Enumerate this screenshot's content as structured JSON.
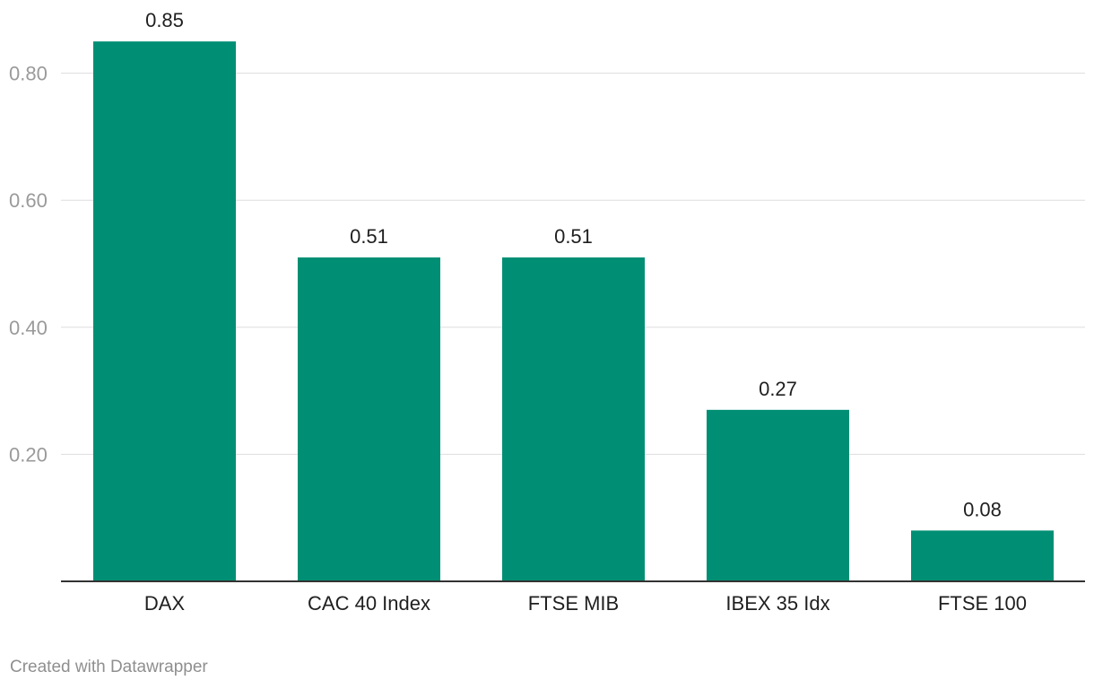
{
  "chart_data": {
    "type": "bar",
    "categories": [
      "DAX",
      "CAC 40 Index",
      "FTSE MIB",
      "IBEX 35 Idx",
      "FTSE 100"
    ],
    "values": [
      0.85,
      0.51,
      0.51,
      0.27,
      0.08
    ],
    "value_labels": [
      "0.85",
      "0.51",
      "0.51",
      "0.27",
      "0.08"
    ],
    "title": "",
    "xlabel": "",
    "ylabel": "",
    "ylim": [
      0,
      0.85
    ],
    "yticks": [
      0.2,
      0.4,
      0.6,
      0.8
    ],
    "ytick_labels": [
      "0.20",
      "0.40",
      "0.60",
      "0.80"
    ],
    "grid": true,
    "bar_color": "#008f74"
  },
  "footer": {
    "credit": "Created with Datawrapper"
  }
}
